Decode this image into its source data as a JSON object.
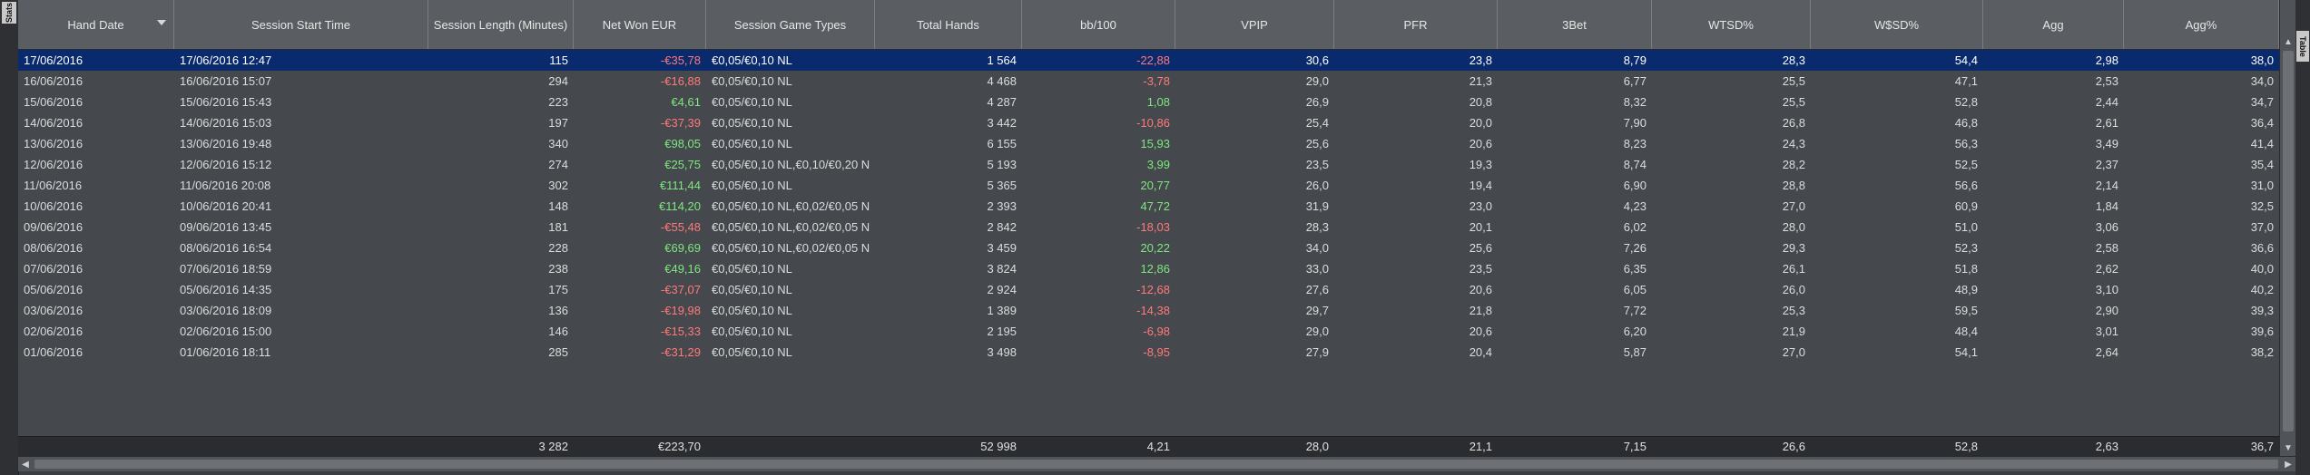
{
  "side_tabs": {
    "left": "Stats",
    "right": "Table"
  },
  "columns": [
    {
      "key": "hand_date",
      "label": "Hand Date",
      "align": "l",
      "sorted": true
    },
    {
      "key": "start",
      "label": "Session Start Time",
      "align": "l"
    },
    {
      "key": "length",
      "label": "Session Length (Minutes)",
      "align": "r"
    },
    {
      "key": "net_won",
      "label": "Net Won EUR",
      "align": "r"
    },
    {
      "key": "game_types",
      "label": "Session Game Types",
      "align": "l"
    },
    {
      "key": "hands",
      "label": "Total Hands",
      "align": "r"
    },
    {
      "key": "bb100",
      "label": "bb/100",
      "align": "r"
    },
    {
      "key": "vpip",
      "label": "VPIP",
      "align": "r"
    },
    {
      "key": "pfr",
      "label": "PFR",
      "align": "r"
    },
    {
      "key": "threebet",
      "label": "3Bet",
      "align": "r"
    },
    {
      "key": "wtsd",
      "label": "WTSD%",
      "align": "r"
    },
    {
      "key": "wsd",
      "label": "W$SD%",
      "align": "r"
    },
    {
      "key": "agg",
      "label": "Agg",
      "align": "r"
    },
    {
      "key": "aggp",
      "label": "Agg%",
      "align": "r"
    }
  ],
  "rows": [
    {
      "hand_date": "17/06/2016",
      "start": "17/06/2016 12:47",
      "length": "115",
      "net_won": "-€35,78",
      "game_types": "€0,05/€0,10 NL",
      "hands": "1 564",
      "bb100": "-22,88",
      "vpip": "30,6",
      "pfr": "23,8",
      "threebet": "8,79",
      "wtsd": "28,3",
      "wsd": "54,4",
      "agg": "2,98",
      "aggp": "38,0",
      "selected": true
    },
    {
      "hand_date": "16/06/2016",
      "start": "16/06/2016 15:07",
      "length": "294",
      "net_won": "-€16,88",
      "game_types": "€0,05/€0,10 NL",
      "hands": "4 468",
      "bb100": "-3,78",
      "vpip": "29,0",
      "pfr": "21,3",
      "threebet": "6,77",
      "wtsd": "25,5",
      "wsd": "47,1",
      "agg": "2,53",
      "aggp": "34,0"
    },
    {
      "hand_date": "15/06/2016",
      "start": "15/06/2016 15:43",
      "length": "223",
      "net_won": "€4,61",
      "game_types": "€0,05/€0,10 NL",
      "hands": "4 287",
      "bb100": "1,08",
      "vpip": "26,9",
      "pfr": "20,8",
      "threebet": "8,32",
      "wtsd": "25,5",
      "wsd": "52,8",
      "agg": "2,44",
      "aggp": "34,7"
    },
    {
      "hand_date": "14/06/2016",
      "start": "14/06/2016 15:03",
      "length": "197",
      "net_won": "-€37,39",
      "game_types": "€0,05/€0,10 NL",
      "hands": "3 442",
      "bb100": "-10,86",
      "vpip": "25,4",
      "pfr": "20,0",
      "threebet": "7,90",
      "wtsd": "26,8",
      "wsd": "46,8",
      "agg": "2,61",
      "aggp": "36,4"
    },
    {
      "hand_date": "13/06/2016",
      "start": "13/06/2016 19:48",
      "length": "340",
      "net_won": "€98,05",
      "game_types": "€0,05/€0,10 NL",
      "hands": "6 155",
      "bb100": "15,93",
      "vpip": "25,6",
      "pfr": "20,6",
      "threebet": "8,23",
      "wtsd": "24,3",
      "wsd": "56,3",
      "agg": "3,49",
      "aggp": "41,4"
    },
    {
      "hand_date": "12/06/2016",
      "start": "12/06/2016 15:12",
      "length": "274",
      "net_won": "€25,75",
      "game_types": "€0,05/€0,10 NL,€0,10/€0,20 N",
      "hands": "5 193",
      "bb100": "3,99",
      "vpip": "23,5",
      "pfr": "19,3",
      "threebet": "8,74",
      "wtsd": "28,2",
      "wsd": "52,5",
      "agg": "2,37",
      "aggp": "35,4"
    },
    {
      "hand_date": "11/06/2016",
      "start": "11/06/2016 20:08",
      "length": "302",
      "net_won": "€111,44",
      "game_types": "€0,05/€0,10 NL",
      "hands": "5 365",
      "bb100": "20,77",
      "vpip": "26,0",
      "pfr": "19,4",
      "threebet": "6,90",
      "wtsd": "28,8",
      "wsd": "56,6",
      "agg": "2,14",
      "aggp": "31,0"
    },
    {
      "hand_date": "10/06/2016",
      "start": "10/06/2016 20:41",
      "length": "148",
      "net_won": "€114,20",
      "game_types": "€0,05/€0,10 NL,€0,02/€0,05 N",
      "hands": "2 393",
      "bb100": "47,72",
      "vpip": "31,9",
      "pfr": "23,0",
      "threebet": "4,23",
      "wtsd": "27,0",
      "wsd": "60,9",
      "agg": "1,84",
      "aggp": "32,5"
    },
    {
      "hand_date": "09/06/2016",
      "start": "09/06/2016 13:45",
      "length": "181",
      "net_won": "-€55,48",
      "game_types": "€0,05/€0,10 NL,€0,02/€0,05 N",
      "hands": "2 842",
      "bb100": "-18,03",
      "vpip": "28,3",
      "pfr": "20,1",
      "threebet": "6,02",
      "wtsd": "28,0",
      "wsd": "51,0",
      "agg": "3,06",
      "aggp": "37,0"
    },
    {
      "hand_date": "08/06/2016",
      "start": "08/06/2016 16:54",
      "length": "228",
      "net_won": "€69,69",
      "game_types": "€0,05/€0,10 NL,€0,02/€0,05 N",
      "hands": "3 459",
      "bb100": "20,22",
      "vpip": "34,0",
      "pfr": "25,6",
      "threebet": "7,26",
      "wtsd": "29,3",
      "wsd": "52,3",
      "agg": "2,58",
      "aggp": "36,6"
    },
    {
      "hand_date": "07/06/2016",
      "start": "07/06/2016 18:59",
      "length": "238",
      "net_won": "€49,16",
      "game_types": "€0,05/€0,10 NL",
      "hands": "3 824",
      "bb100": "12,86",
      "vpip": "33,0",
      "pfr": "23,5",
      "threebet": "6,35",
      "wtsd": "26,1",
      "wsd": "51,8",
      "agg": "2,62",
      "aggp": "40,0"
    },
    {
      "hand_date": "05/06/2016",
      "start": "05/06/2016 14:35",
      "length": "175",
      "net_won": "-€37,07",
      "game_types": "€0,05/€0,10 NL",
      "hands": "2 924",
      "bb100": "-12,68",
      "vpip": "27,6",
      "pfr": "20,6",
      "threebet": "6,05",
      "wtsd": "26,0",
      "wsd": "48,9",
      "agg": "3,10",
      "aggp": "40,2"
    },
    {
      "hand_date": "03/06/2016",
      "start": "03/06/2016 18:09",
      "length": "136",
      "net_won": "-€19,98",
      "game_types": "€0,05/€0,10 NL",
      "hands": "1 389",
      "bb100": "-14,38",
      "vpip": "29,7",
      "pfr": "21,8",
      "threebet": "7,72",
      "wtsd": "25,3",
      "wsd": "59,5",
      "agg": "2,90",
      "aggp": "39,3"
    },
    {
      "hand_date": "02/06/2016",
      "start": "02/06/2016 15:00",
      "length": "146",
      "net_won": "-€15,33",
      "game_types": "€0,05/€0,10 NL",
      "hands": "2 195",
      "bb100": "-6,98",
      "vpip": "29,0",
      "pfr": "20,6",
      "threebet": "6,20",
      "wtsd": "21,9",
      "wsd": "48,4",
      "agg": "3,01",
      "aggp": "39,6"
    },
    {
      "hand_date": "01/06/2016",
      "start": "01/06/2016 18:11",
      "length": "285",
      "net_won": "-€31,29",
      "game_types": "€0,05/€0,10 NL",
      "hands": "3 498",
      "bb100": "-8,95",
      "vpip": "27,9",
      "pfr": "20,4",
      "threebet": "5,87",
      "wtsd": "27,0",
      "wsd": "54,1",
      "agg": "2,64",
      "aggp": "38,2"
    }
  ],
  "totals": {
    "hand_date": "",
    "start": "",
    "length": "3 282",
    "net_won": "€223,70",
    "game_types": "",
    "hands": "52 998",
    "bb100": "4,21",
    "vpip": "28,0",
    "pfr": "21,1",
    "threebet": "7,15",
    "wtsd": "26,6",
    "wsd": "52,8",
    "agg": "2,63",
    "aggp": "36,7"
  },
  "colors": {
    "negative": "#ff7a7a",
    "positive": "#7ee87e",
    "selected": "#0a2a6e"
  }
}
